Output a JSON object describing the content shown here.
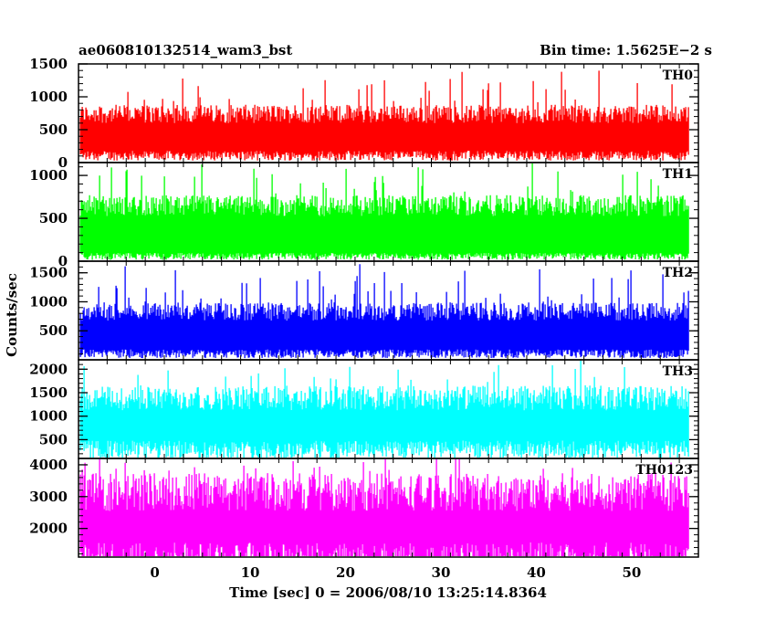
{
  "chart_data": {
    "type": "line",
    "title": "ae060810132514_wam3_bst",
    "subtitle": "Bin time: 1.5625E−2 s",
    "xlabel": "Time [sec] 0 = 2006/08/10 13:25:14.8364",
    "ylabel": "Counts/sec",
    "xlim": [
      -8,
      57
    ],
    "x_range": [
      -7.8,
      56
    ],
    "x_ticks": [
      0,
      10,
      20,
      30,
      40,
      50
    ],
    "grid": false,
    "panels": [
      {
        "name": "TH0",
        "color": "#ff0000",
        "ylim": [
          0,
          1500
        ],
        "y_ticks": [
          0,
          500,
          1000,
          1500
        ],
        "base": 150,
        "typical_peak": 800,
        "max_peak": 1400
      },
      {
        "name": "TH1",
        "color": "#00ff00",
        "ylim": [
          0,
          1150
        ],
        "y_ticks": [
          0,
          500,
          1000
        ],
        "base": 80,
        "typical_peak": 700,
        "max_peak": 1150
      },
      {
        "name": "TH2",
        "color": "#0000ff",
        "ylim": [
          0,
          1700
        ],
        "y_ticks": [
          500,
          1000,
          1500
        ],
        "base": 150,
        "typical_peak": 900,
        "max_peak": 1600
      },
      {
        "name": "TH3",
        "color": "#00ffff",
        "ylim": [
          100,
          2200
        ],
        "y_ticks": [
          500,
          1000,
          1500,
          2000
        ],
        "base": 400,
        "typical_peak": 1500,
        "max_peak": 2200
      },
      {
        "name": "TH0123",
        "color": "#ff00ff",
        "ylim": [
          1100,
          4200
        ],
        "y_ticks": [
          2000,
          3000,
          4000
        ],
        "base": 1300,
        "typical_peak": 3400,
        "max_peak": 4100
      }
    ]
  }
}
